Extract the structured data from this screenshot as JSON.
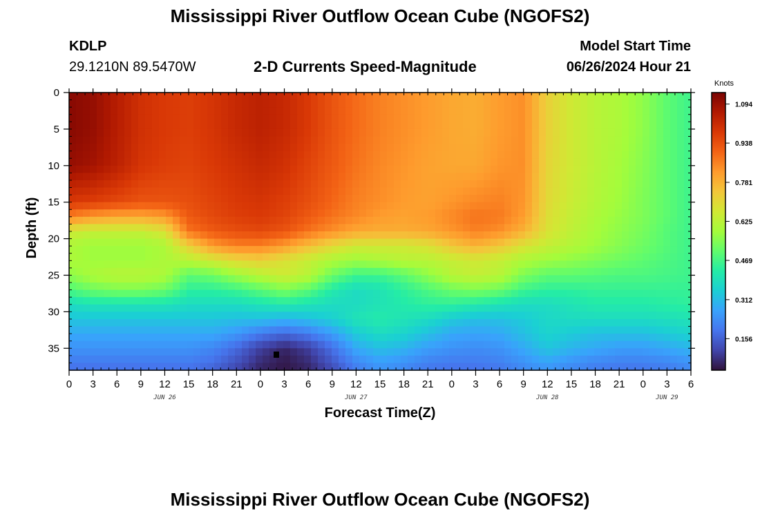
{
  "header": {
    "title": "Mississippi River Outflow Ocean Cube (NGOFS2)",
    "station": "KDLP",
    "coords": "29.1210N  89.5470W",
    "plot_title": "2-D Currents Speed-Magnitude",
    "start_label": "Model Start Time",
    "start_time": "06/26/2024 Hour 21"
  },
  "footer": {
    "title": "Mississippi River Outflow Ocean Cube (NGOFS2)"
  },
  "chart_data": {
    "type": "heatmap",
    "title": "2-D Currents Speed-Magnitude",
    "xlabel": "Forecast Time(Z)",
    "ylabel": "Depth (ft)",
    "colorbar_label": "Knots",
    "xlim": [
      0,
      78
    ],
    "ylim": [
      38,
      0
    ],
    "x_ticks": [
      "0",
      "3",
      "6",
      "9",
      "12",
      "15",
      "18",
      "21",
      "0",
      "3",
      "6",
      "9",
      "12",
      "15",
      "18",
      "21",
      "0",
      "3",
      "6",
      "9",
      "12",
      "15",
      "18",
      "21",
      "0",
      "3",
      "6"
    ],
    "y_ticks": [
      "0",
      "5",
      "10",
      "15",
      "20",
      "25",
      "30",
      "35"
    ],
    "date_labels": [
      {
        "text": "JUN 26",
        "hour": 12
      },
      {
        "text": "JUN 27",
        "hour": 36
      },
      {
        "text": "JUN 28",
        "hour": 60
      },
      {
        "text": "JUN 29",
        "hour": 75
      }
    ],
    "colorbar_ticks": [
      "1.094",
      "0.938",
      "0.781",
      "0.625",
      "0.469",
      "0.312",
      "0.156"
    ],
    "colorbar_range": [
      0.03,
      1.14
    ],
    "colormap": [
      "#30123b",
      "#4145ab",
      "#4675ed",
      "#39a2fc",
      "#1bcfd4",
      "#24eca6",
      "#61fc6c",
      "#a4fc3b",
      "#d1e834",
      "#f3c63a",
      "#fe9b2d",
      "#f36315",
      "#d93806",
      "#b11901",
      "#7a0403"
    ],
    "depths_ft": [
      0,
      5,
      10,
      15,
      17,
      19,
      21,
      23,
      25,
      27,
      29,
      31,
      33,
      35,
      37,
      38
    ],
    "hours": [
      0,
      3,
      6,
      9,
      12,
      15,
      18,
      21,
      24,
      27,
      30,
      33,
      36,
      39,
      42,
      45,
      48,
      51,
      54,
      57,
      60,
      63,
      66,
      69,
      72,
      75,
      78
    ],
    "speed_knots": [
      [
        1.12,
        1.1,
        1.05,
        1.0,
        0.98,
        0.97,
        0.99,
        1.02,
        1.04,
        1.02,
        0.98,
        0.93,
        0.89,
        0.86,
        0.84,
        0.82,
        0.8,
        0.79,
        0.82,
        0.84,
        0.72,
        0.66,
        0.62,
        0.6,
        0.56,
        0.5,
        0.46
      ],
      [
        1.12,
        1.1,
        1.05,
        1.0,
        0.98,
        0.97,
        0.99,
        1.02,
        1.04,
        1.02,
        0.98,
        0.93,
        0.89,
        0.86,
        0.84,
        0.82,
        0.8,
        0.79,
        0.82,
        0.84,
        0.72,
        0.66,
        0.62,
        0.6,
        0.56,
        0.5,
        0.46
      ],
      [
        1.1,
        1.08,
        1.04,
        0.99,
        0.97,
        0.96,
        0.98,
        1.0,
        1.02,
        1.0,
        0.96,
        0.92,
        0.88,
        0.85,
        0.83,
        0.81,
        0.8,
        0.8,
        0.83,
        0.84,
        0.71,
        0.66,
        0.62,
        0.59,
        0.55,
        0.5,
        0.46
      ],
      [
        0.98,
        0.97,
        0.95,
        0.93,
        0.93,
        0.94,
        0.96,
        0.98,
        0.99,
        0.97,
        0.94,
        0.9,
        0.86,
        0.84,
        0.82,
        0.81,
        0.83,
        0.85,
        0.86,
        0.83,
        0.7,
        0.65,
        0.61,
        0.58,
        0.54,
        0.5,
        0.46
      ],
      [
        0.86,
        0.82,
        0.8,
        0.8,
        0.82,
        0.92,
        0.95,
        0.97,
        0.98,
        0.96,
        0.92,
        0.88,
        0.85,
        0.82,
        0.81,
        0.82,
        0.85,
        0.88,
        0.87,
        0.82,
        0.69,
        0.64,
        0.6,
        0.57,
        0.54,
        0.5,
        0.46
      ],
      [
        0.66,
        0.64,
        0.64,
        0.64,
        0.68,
        0.88,
        0.92,
        0.94,
        0.95,
        0.93,
        0.88,
        0.84,
        0.8,
        0.79,
        0.79,
        0.8,
        0.83,
        0.86,
        0.84,
        0.78,
        0.68,
        0.63,
        0.59,
        0.56,
        0.53,
        0.49,
        0.46
      ],
      [
        0.6,
        0.58,
        0.58,
        0.58,
        0.6,
        0.72,
        0.82,
        0.86,
        0.86,
        0.82,
        0.76,
        0.7,
        0.66,
        0.66,
        0.66,
        0.68,
        0.74,
        0.78,
        0.74,
        0.68,
        0.64,
        0.61,
        0.58,
        0.55,
        0.52,
        0.49,
        0.46
      ],
      [
        0.6,
        0.58,
        0.58,
        0.58,
        0.6,
        0.62,
        0.66,
        0.7,
        0.72,
        0.68,
        0.64,
        0.6,
        0.58,
        0.6,
        0.62,
        0.62,
        0.64,
        0.66,
        0.64,
        0.6,
        0.58,
        0.56,
        0.54,
        0.52,
        0.5,
        0.48,
        0.46
      ],
      [
        0.56,
        0.6,
        0.62,
        0.62,
        0.6,
        0.5,
        0.52,
        0.58,
        0.62,
        0.66,
        0.62,
        0.52,
        0.46,
        0.46,
        0.5,
        0.56,
        0.62,
        0.64,
        0.62,
        0.54,
        0.5,
        0.5,
        0.49,
        0.48,
        0.48,
        0.47,
        0.46
      ],
      [
        0.48,
        0.52,
        0.54,
        0.54,
        0.52,
        0.44,
        0.44,
        0.46,
        0.5,
        0.54,
        0.5,
        0.42,
        0.38,
        0.4,
        0.44,
        0.48,
        0.52,
        0.54,
        0.52,
        0.46,
        0.44,
        0.44,
        0.45,
        0.45,
        0.45,
        0.45,
        0.45
      ],
      [
        0.38,
        0.4,
        0.4,
        0.4,
        0.4,
        0.38,
        0.38,
        0.38,
        0.4,
        0.42,
        0.4,
        0.38,
        0.38,
        0.4,
        0.42,
        0.44,
        0.44,
        0.42,
        0.4,
        0.38,
        0.38,
        0.4,
        0.42,
        0.42,
        0.42,
        0.43,
        0.44
      ],
      [
        0.33,
        0.33,
        0.33,
        0.33,
        0.33,
        0.33,
        0.33,
        0.32,
        0.32,
        0.3,
        0.32,
        0.35,
        0.4,
        0.42,
        0.4,
        0.38,
        0.34,
        0.32,
        0.32,
        0.34,
        0.37,
        0.38,
        0.38,
        0.38,
        0.38,
        0.39,
        0.4
      ],
      [
        0.28,
        0.28,
        0.28,
        0.28,
        0.28,
        0.28,
        0.28,
        0.25,
        0.2,
        0.17,
        0.2,
        0.26,
        0.34,
        0.38,
        0.36,
        0.32,
        0.28,
        0.27,
        0.28,
        0.32,
        0.36,
        0.34,
        0.32,
        0.32,
        0.32,
        0.34,
        0.36
      ],
      [
        0.24,
        0.24,
        0.24,
        0.24,
        0.24,
        0.24,
        0.22,
        0.17,
        0.1,
        0.06,
        0.1,
        0.18,
        0.28,
        0.32,
        0.3,
        0.26,
        0.24,
        0.23,
        0.24,
        0.28,
        0.33,
        0.3,
        0.28,
        0.26,
        0.26,
        0.28,
        0.3
      ],
      [
        0.2,
        0.2,
        0.2,
        0.2,
        0.2,
        0.2,
        0.18,
        0.13,
        0.07,
        0.04,
        0.07,
        0.14,
        0.22,
        0.26,
        0.24,
        0.21,
        0.2,
        0.2,
        0.21,
        0.24,
        0.27,
        0.24,
        0.22,
        0.21,
        0.21,
        0.22,
        0.24
      ],
      [
        0.18,
        0.18,
        0.18,
        0.18,
        0.18,
        0.18,
        0.16,
        0.11,
        0.06,
        0.04,
        0.06,
        0.12,
        0.2,
        0.24,
        0.22,
        0.19,
        0.18,
        0.18,
        0.19,
        0.22,
        0.24,
        0.22,
        0.2,
        0.19,
        0.19,
        0.2,
        0.22
      ]
    ]
  }
}
